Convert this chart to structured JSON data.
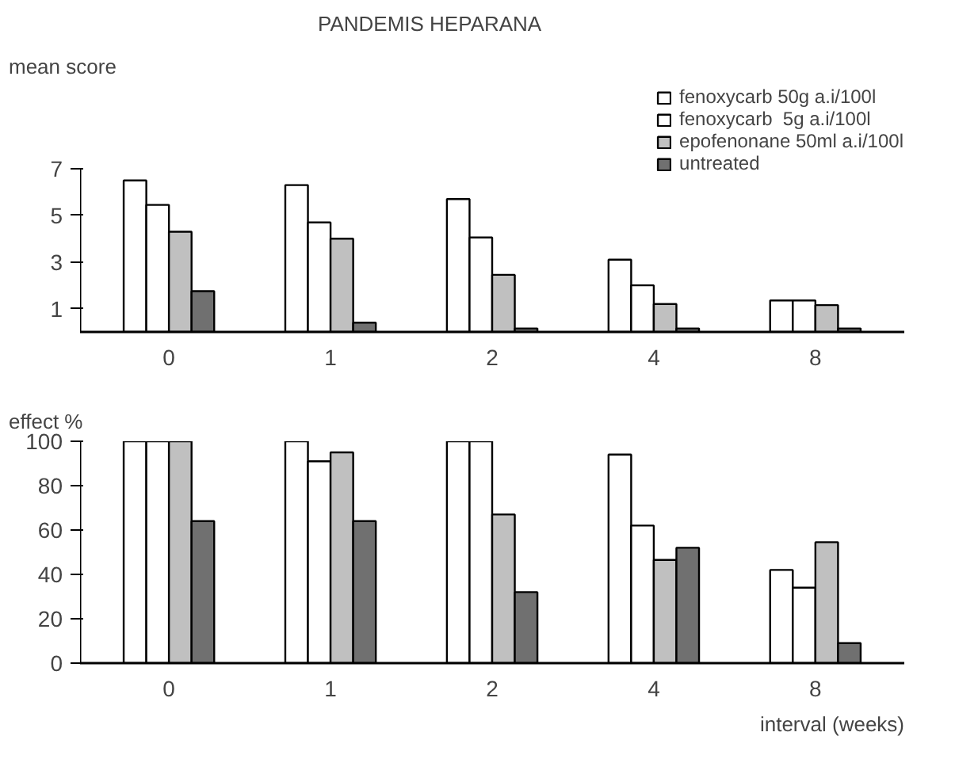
{
  "chart_data": [
    {
      "type": "bar",
      "title": "PANDEMIS HEPARANA",
      "ylabel": "mean score",
      "categories": [
        "0",
        "1",
        "2",
        "4",
        "8"
      ],
      "ylim": [
        0,
        7
      ],
      "yticks": [
        1,
        3,
        5,
        7
      ],
      "legend": "top right",
      "grid": false,
      "series": [
        {
          "name": "fenoxycarb 50g a.i/100l",
          "color": "#ffffff",
          "values": [
            6.5,
            6.3,
            5.7,
            3.1,
            1.35
          ]
        },
        {
          "name": "fenoxycarb  5g a.i/100l",
          "color": "#ffffff",
          "values": [
            5.45,
            4.7,
            4.05,
            2.0,
            1.35
          ]
        },
        {
          "name": "epofenonane 50ml a.i/100l",
          "color": "#c0c0c0",
          "values": [
            4.3,
            4.0,
            2.45,
            1.2,
            1.15
          ]
        },
        {
          "name": "untreated",
          "color": "#707070",
          "values": [
            1.75,
            0.4,
            0.15,
            0.15,
            0.15
          ]
        }
      ]
    },
    {
      "type": "bar",
      "ylabel": "effect %",
      "xlabel": "interval (weeks)",
      "categories": [
        "0",
        "1",
        "2",
        "4",
        "8"
      ],
      "ylim": [
        0,
        100
      ],
      "yticks": [
        0,
        20,
        40,
        60,
        80,
        100
      ],
      "grid": false,
      "series": [
        {
          "color": "#ffffff",
          "values": [
            100,
            100,
            100,
            94,
            42
          ]
        },
        {
          "color": "#ffffff",
          "values": [
            100,
            91,
            100,
            62,
            34
          ]
        },
        {
          "color": "#c0c0c0",
          "values": [
            100,
            95,
            67,
            46.5,
            54.5
          ]
        },
        {
          "color": "#707070",
          "values": [
            64,
            64,
            32,
            52,
            9
          ]
        }
      ]
    }
  ]
}
